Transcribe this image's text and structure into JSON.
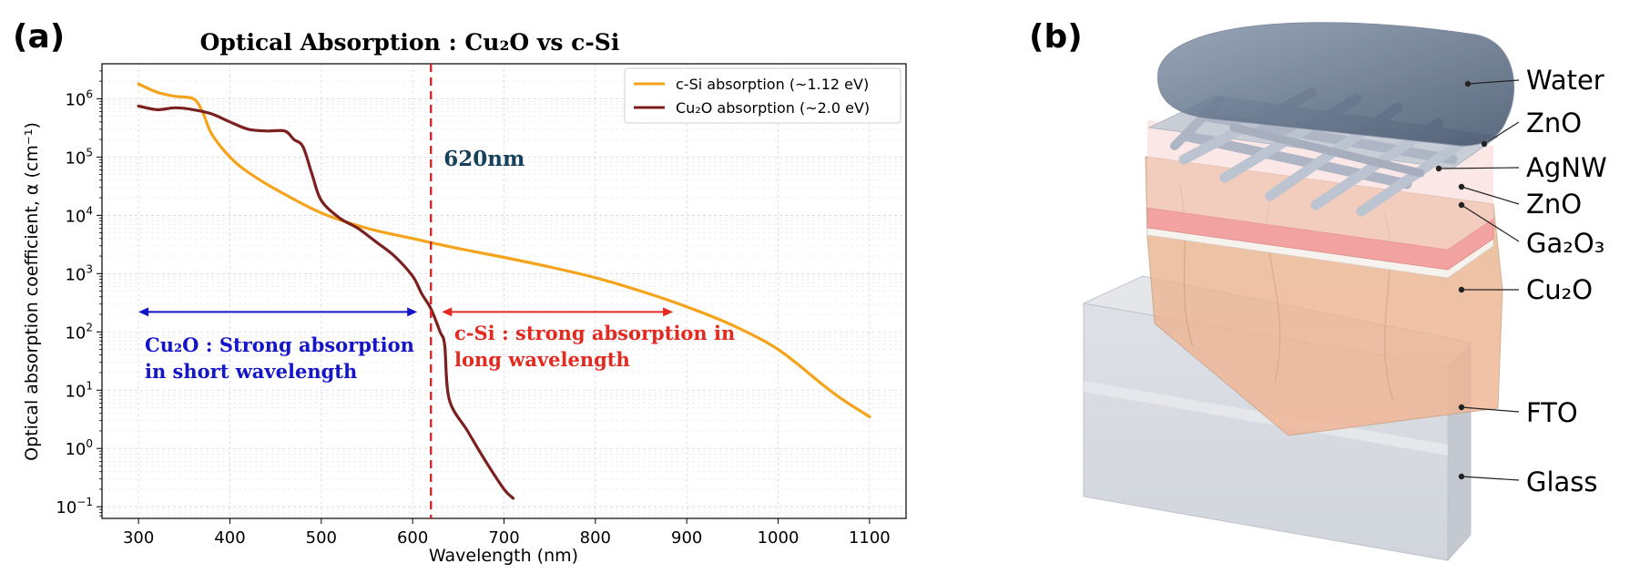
{
  "panels": {
    "a": {
      "label": "(a)"
    },
    "b": {
      "label": "(b)"
    }
  },
  "chart_data": {
    "type": "line",
    "title": "Optical Absorption : Cu₂O vs c-Si",
    "xlabel": "Wavelength (nm)",
    "ylabel": "Optical absorption coefficient, α (cm⁻¹)",
    "yscale": "log",
    "xlim": [
      260,
      1140
    ],
    "ylim_log10": [
      -1.2,
      6.6
    ],
    "grid": true,
    "x_ticks": [
      300,
      400,
      500,
      600,
      700,
      800,
      900,
      1000,
      1100
    ],
    "x_tick_labels": [
      "300",
      "400",
      "500",
      "600",
      "700",
      "800",
      "900",
      "1000",
      "1100"
    ],
    "y_ticks_log10": [
      -1,
      0,
      1,
      2,
      3,
      4,
      5,
      6
    ],
    "y_tick_base": "10",
    "y_tick_exponents": [
      "−1",
      "0",
      "1",
      "2",
      "3",
      "4",
      "5",
      "6"
    ],
    "legend_position": "top-right",
    "series": [
      {
        "name": "c-Si absorption (~1.12 eV)",
        "color": "#f5a31a",
        "x": [
          300,
          320,
          340,
          360,
          370,
          380,
          400,
          420,
          450,
          500,
          550,
          600,
          650,
          700,
          750,
          800,
          850,
          900,
          950,
          1000,
          1050,
          1070,
          1100
        ],
        "y": [
          1800000.0,
          1300000.0,
          1100000.0,
          1000000.0,
          600000.0,
          250000.0,
          100000.0,
          55000.0,
          28000.0,
          11000.0,
          6000,
          4000,
          2700,
          1900,
          1300,
          850,
          500,
          270,
          130,
          50,
          12,
          7,
          3.5
        ]
      },
      {
        "name": "Cu₂O absorption (~2.0 eV)",
        "color": "#7b1f1f",
        "x": [
          300,
          320,
          340,
          360,
          380,
          400,
          420,
          440,
          460,
          470,
          480,
          490,
          500,
          520,
          540,
          560,
          580,
          600,
          610,
          620,
          630,
          635,
          640,
          660,
          680,
          700,
          710
        ],
        "y": [
          750000.0,
          650000.0,
          700000.0,
          650000.0,
          550000.0,
          400000.0,
          300000.0,
          280000.0,
          280000.0,
          200000.0,
          150000.0,
          50000.0,
          18000.0,
          9000,
          6000,
          3500,
          2000,
          900,
          450,
          250,
          100,
          60,
          7,
          2.0,
          0.6,
          0.2,
          0.14
        ]
      }
    ],
    "annotations": {
      "vline": {
        "x": 620,
        "label": "620nm",
        "color": "#d62728"
      },
      "left_arrow": {
        "x_from": 300,
        "x_to": 605,
        "y": 220,
        "color": "#1515c8",
        "lines": [
          "Cu₂O : Strong absorption",
          "in short wavelength"
        ]
      },
      "right_arrow": {
        "x_from": 632,
        "x_to": 885,
        "y": 220,
        "color": "#e32a20",
        "lines": [
          "c-Si : strong absorption in",
          "long wavelength"
        ]
      }
    }
  },
  "schematic": {
    "layers": [
      "Water",
      "ZnO",
      "AgNW",
      "ZnO",
      "Ga₂O₃",
      "Cu₂O",
      "FTO",
      "Glass"
    ]
  }
}
